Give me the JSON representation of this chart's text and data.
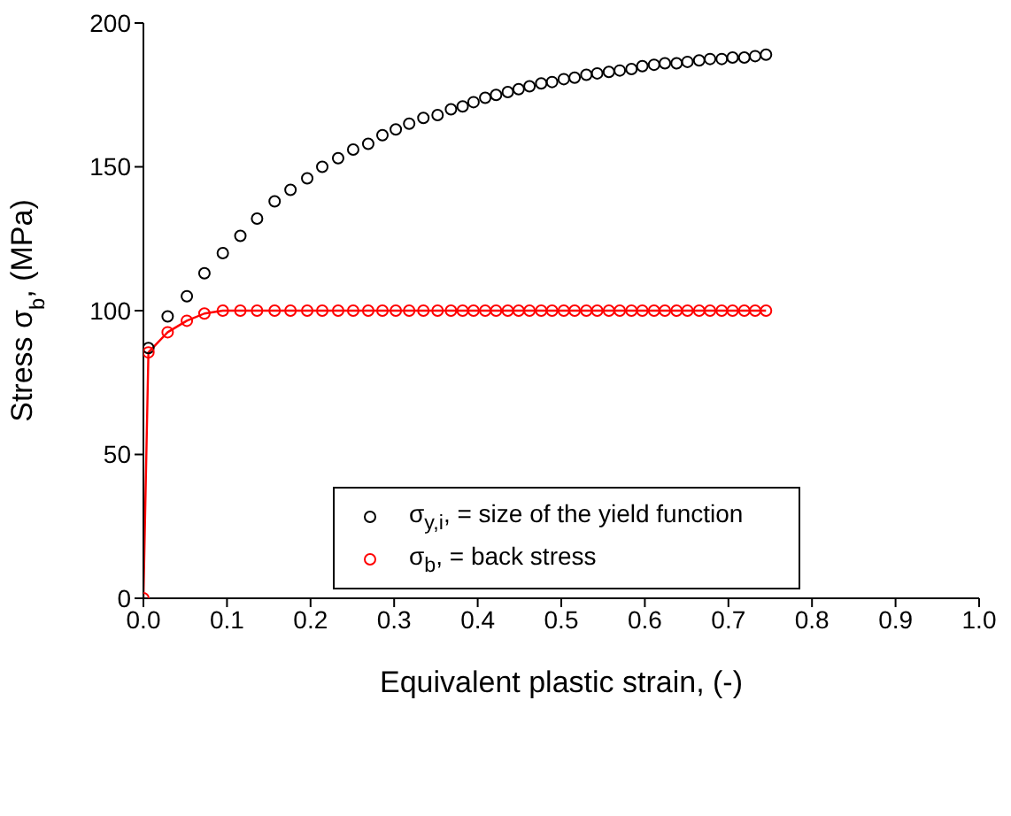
{
  "chart_data": {
    "type": "scatter",
    "xlabel": "Equivalent plastic strain, (-)",
    "ylabel": "Stress σ$_{b}$, (MPa)",
    "xlim": [
      0,
      1
    ],
    "ylim": [
      0,
      200
    ],
    "xticks": [
      {
        "value": 0,
        "label": "0.0"
      },
      {
        "value": 0.1,
        "label": "0.1"
      },
      {
        "value": 0.2,
        "label": "0.2"
      },
      {
        "value": 0.3,
        "label": "0.3"
      },
      {
        "value": 0.4,
        "label": "0.4"
      },
      {
        "value": 0.5,
        "label": "0.5"
      },
      {
        "value": 0.6,
        "label": "0.6"
      },
      {
        "value": 0.7,
        "label": "0.7"
      },
      {
        "value": 0.8,
        "label": "0.8"
      },
      {
        "value": 0.9,
        "label": "0.9"
      },
      {
        "value": 1,
        "label": "1.0"
      }
    ],
    "yticks": [
      0,
      50,
      100,
      150,
      200
    ],
    "legend": "right",
    "marker": "circle",
    "grid": false,
    "series": [
      {
        "name": "σ$_{y,i}$, = size of the yield function",
        "color": "#000000",
        "x": [
          0.006,
          0.029,
          0.052,
          0.073,
          0.095,
          0.116,
          0.136,
          0.157,
          0.176,
          0.196,
          0.214,
          0.233,
          0.251,
          0.269,
          0.286,
          0.302,
          0.318,
          0.335,
          0.352,
          0.368,
          0.382,
          0.395,
          0.409,
          0.422,
          0.436,
          0.449,
          0.462,
          0.476,
          0.489,
          0.503,
          0.516,
          0.53,
          0.543,
          0.557,
          0.57,
          0.584,
          0.597,
          0.611,
          0.624,
          0.638,
          0.651,
          0.665,
          0.678,
          0.692,
          0.705,
          0.719,
          0.732,
          0.745
        ],
        "values": [
          87,
          98,
          105,
          113,
          120,
          126,
          132,
          138,
          142,
          146,
          150,
          153,
          156,
          158,
          161,
          163,
          165,
          167,
          168,
          170,
          171,
          172.5,
          174,
          175,
          176,
          177,
          178,
          179,
          179.5,
          180.5,
          181,
          182,
          182.5,
          183,
          183.5,
          184,
          185,
          185.5,
          186,
          186,
          186.5,
          187,
          187.5,
          187.5,
          188,
          188,
          188.5,
          189
        ]
      },
      {
        "name": "σ$_{b}$, = back stress",
        "color": "#ff0000",
        "type": "line",
        "x": [
          0,
          0.006,
          0.029,
          0.052,
          0.073,
          0.095,
          0.116,
          0.136,
          0.157,
          0.176,
          0.196,
          0.214,
          0.233,
          0.251,
          0.269,
          0.286,
          0.302,
          0.318,
          0.335,
          0.352,
          0.368,
          0.382,
          0.395,
          0.409,
          0.422,
          0.436,
          0.449,
          0.462,
          0.476,
          0.489,
          0.503,
          0.516,
          0.53,
          0.543,
          0.557,
          0.57,
          0.584,
          0.597,
          0.611,
          0.624,
          0.638,
          0.651,
          0.665,
          0.678,
          0.692,
          0.705,
          0.719,
          0.732,
          0.745
        ],
        "values": [
          0,
          85.5,
          92.5,
          96.5,
          99,
          100,
          100,
          100,
          100,
          100,
          100,
          100,
          100,
          100,
          100,
          100,
          100,
          100,
          100,
          100,
          100,
          100,
          100,
          100,
          100,
          100,
          100,
          100,
          100,
          100,
          100,
          100,
          100,
          100,
          100,
          100,
          100,
          100,
          100,
          100,
          100,
          100,
          100,
          100,
          100,
          100,
          100,
          100,
          100
        ]
      }
    ]
  }
}
